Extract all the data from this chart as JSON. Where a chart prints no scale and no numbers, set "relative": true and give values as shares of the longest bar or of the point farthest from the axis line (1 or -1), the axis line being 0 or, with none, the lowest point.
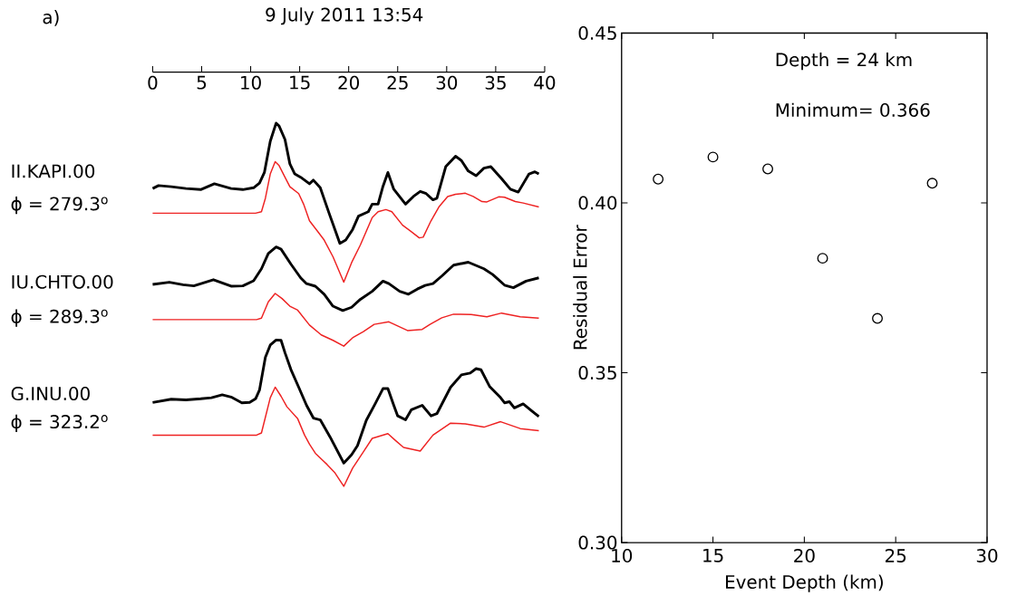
{
  "chart_data": [
    {
      "type": "line",
      "title": "9 July 2011 13:54",
      "relative": true,
      "tick_labels": "x",
      "xlim": [
        0,
        40
      ],
      "xticks": [
        0,
        5,
        10,
        15,
        20,
        25,
        30,
        35,
        40
      ],
      "annotations": [
        "a)",
        "II.KAPI.00",
        "ϕ = 279.3$^{o}$",
        "IU.CHTO.00",
        "ϕ = 289.3$^{o}$",
        "G.INU.00",
        "ϕ = 323.2$^{o}$"
      ],
      "series": [
        {
          "color": "#000000",
          "x": [
            0,
            0.6,
            1.9,
            3.4,
            4.9,
            6.3,
            8.0,
            9.2,
            10.3,
            10.9,
            11.4,
            12.0,
            12.6,
            12.9,
            13.5,
            14.0,
            14.5,
            15.1,
            16.0,
            16.4,
            17.1,
            18.0,
            19.1,
            19.7,
            20.4,
            21.0,
            22.0,
            22.4,
            23.0,
            23.5,
            24.0,
            24.6,
            25.8,
            26.6,
            27.3,
            27.9,
            28.6,
            29.0,
            29.9,
            30.9,
            31.5,
            32.2,
            33.0,
            33.8,
            34.5,
            35.6,
            36.5,
            37.3,
            38.4,
            39.0,
            39.4
          ],
          "values": [
            0.82,
            0.828,
            0.825,
            0.82,
            0.817,
            0.833,
            0.82,
            0.817,
            0.822,
            0.835,
            0.864,
            0.95,
            1.0,
            0.992,
            0.955,
            0.888,
            0.86,
            0.851,
            0.833,
            0.843,
            0.822,
            0.752,
            0.669,
            0.678,
            0.707,
            0.744,
            0.756,
            0.777,
            0.777,
            0.826,
            0.864,
            0.818,
            0.777,
            0.798,
            0.812,
            0.806,
            0.789,
            0.793,
            0.88,
            0.909,
            0.897,
            0.868,
            0.855,
            0.876,
            0.88,
            0.847,
            0.818,
            0.81,
            0.86,
            0.866,
            0.86
          ]
        },
        {
          "color": "#ee2222",
          "x": [
            0,
            10.5,
            11.1,
            11.5,
            12.0,
            12.5,
            12.9,
            13.5,
            14.0,
            14.9,
            15.4,
            16.0,
            16.8,
            17.5,
            18.4,
            19.5,
            20.3,
            21.2,
            22.4,
            23.0,
            23.8,
            24.4,
            25.5,
            26.4,
            27.2,
            27.6,
            28.4,
            29.2,
            30.1,
            30.9,
            31.9,
            32.7,
            33.6,
            34.1,
            35.3,
            35.9,
            37.0,
            37.8,
            39.4
          ],
          "values": [
            0.752,
            0.752,
            0.756,
            0.793,
            0.86,
            0.894,
            0.883,
            0.851,
            0.825,
            0.806,
            0.777,
            0.731,
            0.703,
            0.678,
            0.632,
            0.562,
            0.616,
            0.665,
            0.74,
            0.756,
            0.762,
            0.756,
            0.719,
            0.701,
            0.684,
            0.686,
            0.731,
            0.769,
            0.798,
            0.804,
            0.807,
            0.798,
            0.784,
            0.783,
            0.797,
            0.796,
            0.784,
            0.78,
            0.769
          ]
        },
        {
          "color": "#000000",
          "x": [
            0,
            1.7,
            3.1,
            4.2,
            6.2,
            8.0,
            9.2,
            10.3,
            11.1,
            11.8,
            12.6,
            13.1,
            14.1,
            15.1,
            15.7,
            16.6,
            17.5,
            18.4,
            19.4,
            20.3,
            21.2,
            22.4,
            23.5,
            24.1,
            25.2,
            26.1,
            27.0,
            27.8,
            28.6,
            29.5,
            30.7,
            32.2,
            33.8,
            34.7,
            35.9,
            36.8,
            38.1,
            39.4
          ],
          "values": [
            0.556,
            0.562,
            0.555,
            0.552,
            0.569,
            0.551,
            0.552,
            0.566,
            0.599,
            0.641,
            0.659,
            0.653,
            0.612,
            0.574,
            0.558,
            0.551,
            0.529,
            0.496,
            0.484,
            0.493,
            0.515,
            0.537,
            0.565,
            0.558,
            0.537,
            0.529,
            0.543,
            0.553,
            0.558,
            0.579,
            0.609,
            0.617,
            0.599,
            0.583,
            0.554,
            0.547,
            0.565,
            0.574
          ]
        },
        {
          "color": "#ee2222",
          "x": [
            0,
            10.6,
            11.1,
            11.8,
            12.5,
            13.2,
            14.0,
            14.8,
            16.0,
            17.2,
            18.4,
            19.5,
            20.4,
            21.5,
            22.6,
            24.1,
            26.0,
            27.5,
            28.3,
            29.5,
            30.7,
            32.5,
            34.1,
            35.6,
            37.5,
            39.4
          ],
          "values": [
            0.459,
            0.459,
            0.463,
            0.508,
            0.531,
            0.517,
            0.496,
            0.485,
            0.444,
            0.417,
            0.402,
            0.386,
            0.409,
            0.426,
            0.446,
            0.453,
            0.429,
            0.432,
            0.446,
            0.464,
            0.474,
            0.473,
            0.467,
            0.477,
            0.467,
            0.463
          ]
        },
        {
          "color": "#000000",
          "x": [
            0,
            1.9,
            3.4,
            4.9,
            6.0,
            7.1,
            8.0,
            9.1,
            9.9,
            10.5,
            10.9,
            11.5,
            12.0,
            12.6,
            13.1,
            13.5,
            14.1,
            14.9,
            15.7,
            16.4,
            17.1,
            18.1,
            19.5,
            20.3,
            20.9,
            21.8,
            22.7,
            23.5,
            24.0,
            24.6,
            25.0,
            25.8,
            26.4,
            27.5,
            28.4,
            29.0,
            30.4,
            31.5,
            32.4,
            33.0,
            33.5,
            34.4,
            35.5,
            35.9,
            36.4,
            36.9,
            37.8,
            38.7,
            39.4
          ],
          "values": [
            0.231,
            0.24,
            0.238,
            0.241,
            0.244,
            0.252,
            0.246,
            0.23,
            0.231,
            0.241,
            0.265,
            0.355,
            0.389,
            0.403,
            0.402,
            0.368,
            0.322,
            0.273,
            0.223,
            0.188,
            0.183,
            0.136,
            0.064,
            0.087,
            0.112,
            0.182,
            0.227,
            0.269,
            0.269,
            0.223,
            0.194,
            0.183,
            0.211,
            0.223,
            0.194,
            0.2,
            0.273,
            0.307,
            0.312,
            0.324,
            0.321,
            0.274,
            0.244,
            0.23,
            0.233,
            0.216,
            0.227,
            0.207,
            0.192
          ]
        },
        {
          "color": "#ee2222",
          "x": [
            0,
            10.6,
            11.1,
            11.5,
            12.0,
            12.5,
            13.1,
            13.7,
            14.8,
            15.5,
            16.0,
            16.6,
            17.8,
            18.6,
            19.5,
            20.4,
            21.5,
            22.4,
            24.0,
            24.7,
            25.6,
            27.3,
            28.6,
            30.4,
            31.9,
            33.8,
            35.5,
            37.5,
            39.4
          ],
          "values": [
            0.141,
            0.141,
            0.147,
            0.19,
            0.244,
            0.273,
            0.248,
            0.219,
            0.186,
            0.141,
            0.116,
            0.091,
            0.06,
            0.037,
            0,
            0.05,
            0.095,
            0.132,
            0.145,
            0.128,
            0.107,
            0.097,
            0.141,
            0.174,
            0.172,
            0.163,
            0.178,
            0.159,
            0.153
          ]
        }
      ]
    },
    {
      "type": "scatter",
      "xlabel": "Event Depth (km)",
      "ylabel": "Residual Error",
      "xlim": [
        10,
        30
      ],
      "xticks": [
        10,
        15,
        20,
        25,
        30
      ],
      "ylim": [
        0.3,
        0.45
      ],
      "yticks": [
        {
          "value": 0.3,
          "label": "0.30"
        },
        {
          "value": 0.35,
          "label": "0.35"
        },
        {
          "value": 0.4,
          "label": "0.40"
        },
        {
          "value": 0.45,
          "label": "0.45"
        }
      ],
      "marker": "circle",
      "annotations": [
        "Depth = 24 km",
        "Minimum= 0.366"
      ],
      "series": [
        {
          "color": "#000000",
          "x": [
            12,
            15,
            18,
            21,
            24,
            27
          ],
          "values": [
            0.407,
            0.4135,
            0.41,
            0.3837,
            0.366,
            0.4058
          ]
        }
      ]
    }
  ]
}
